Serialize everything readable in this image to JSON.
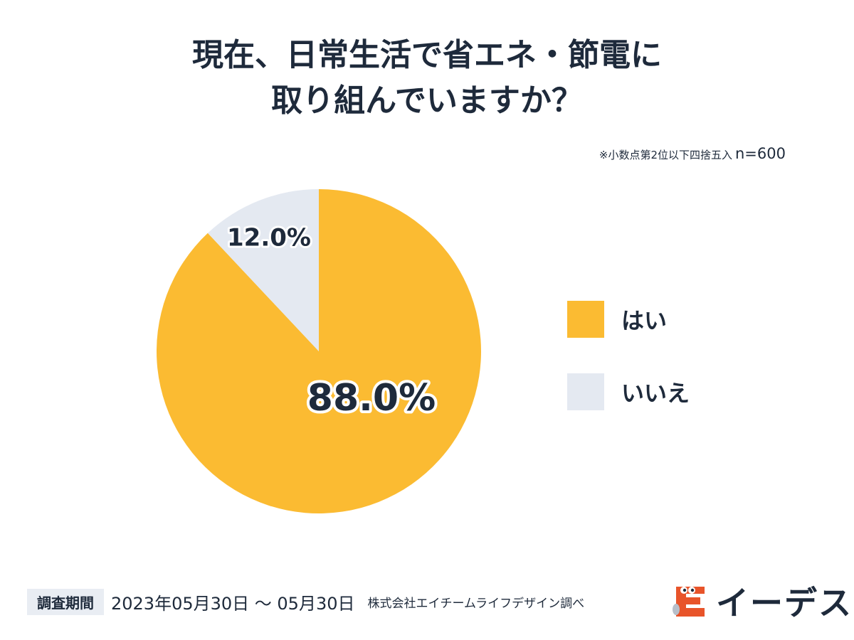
{
  "title_line1": "現在、日常生活で省エネ・節電に",
  "title_line2": "取り組んでいますか？",
  "note": "※小数点第2位以下四捨五入",
  "sample_size": "n=600",
  "chart_data": {
    "type": "pie",
    "categories": [
      "はい",
      "いいえ"
    ],
    "values": [
      88.0,
      12.0
    ],
    "labels": [
      "88.0%",
      "12.0%"
    ],
    "colors": [
      "#fbbb32",
      "#e4e9f1"
    ],
    "start": "12 o'clock",
    "direction": "clockwise",
    "legend_position": "right"
  },
  "footer": {
    "period_label": "調査期間",
    "dates": "2023年05月30日 〜 05月30日",
    "surveyed_by": "株式会社エイチームライフデザイン調べ"
  },
  "logo": {
    "text": "イーデス",
    "icon": "mascot-logo-icon",
    "color": "#e8542a"
  }
}
